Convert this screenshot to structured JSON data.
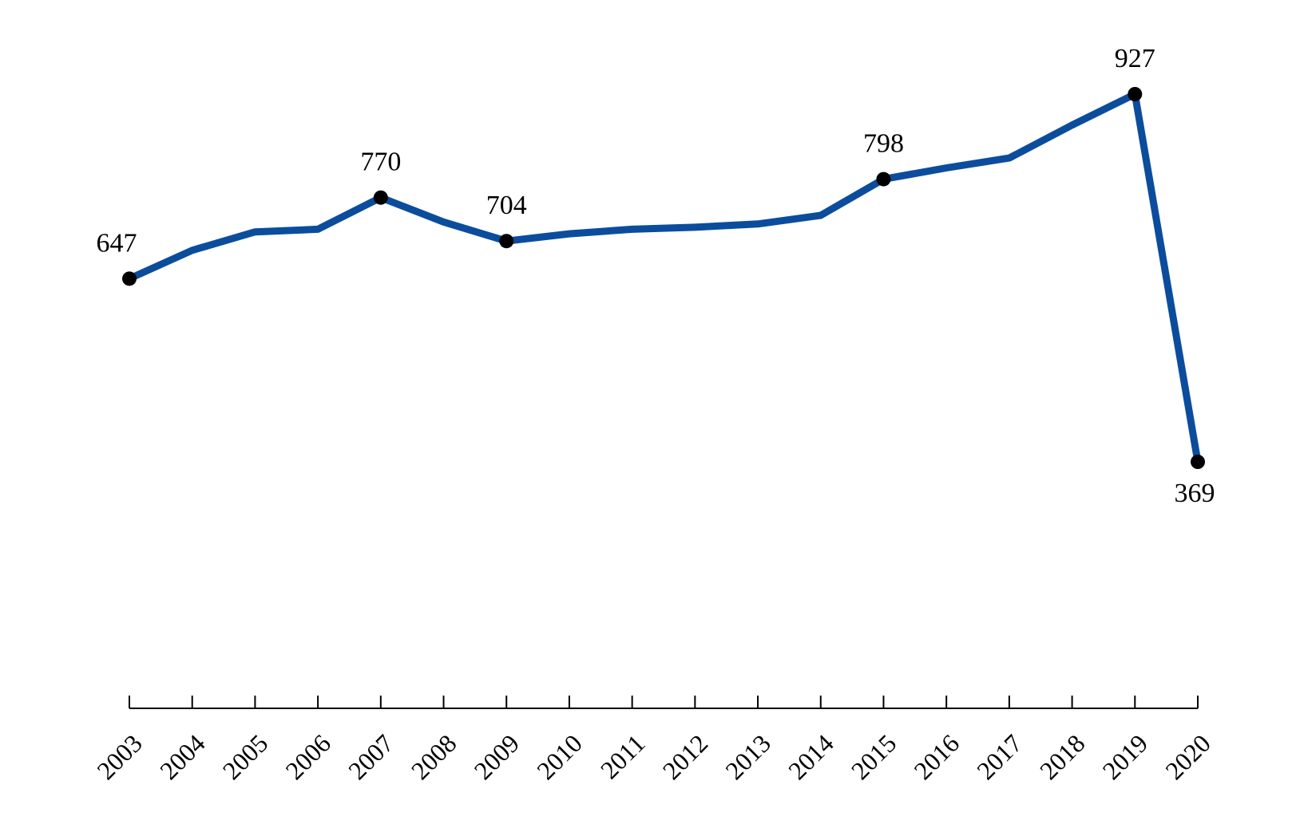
{
  "chart_data": {
    "type": "line",
    "title": "",
    "xlabel": "",
    "ylabel": "",
    "categories": [
      "2003",
      "2004",
      "2005",
      "2006",
      "2007",
      "2008",
      "2009",
      "2010",
      "2011",
      "2012",
      "2013",
      "2014",
      "2015",
      "2016",
      "2017",
      "2018",
      "2019",
      "2020"
    ],
    "series": [
      {
        "values": [
          647,
          690,
          718,
          722,
          770,
          733,
          704,
          715,
          722,
          725,
          730,
          743,
          798,
          815,
          830,
          880,
          927,
          369
        ],
        "color": "#0b4d9c"
      }
    ],
    "labeled_points": [
      {
        "category": "2003",
        "text": "647",
        "position": "above"
      },
      {
        "category": "2007",
        "text": "770",
        "position": "above"
      },
      {
        "category": "2009",
        "text": "704",
        "position": "above"
      },
      {
        "category": "2015",
        "text": "798",
        "position": "above"
      },
      {
        "category": "2019",
        "text": "927",
        "position": "above"
      },
      {
        "category": "2020",
        "text": "369",
        "position": "below"
      }
    ],
    "marker_color": "#000000",
    "ylim": [
      0,
      1000
    ],
    "grid": false,
    "legend": "none"
  }
}
